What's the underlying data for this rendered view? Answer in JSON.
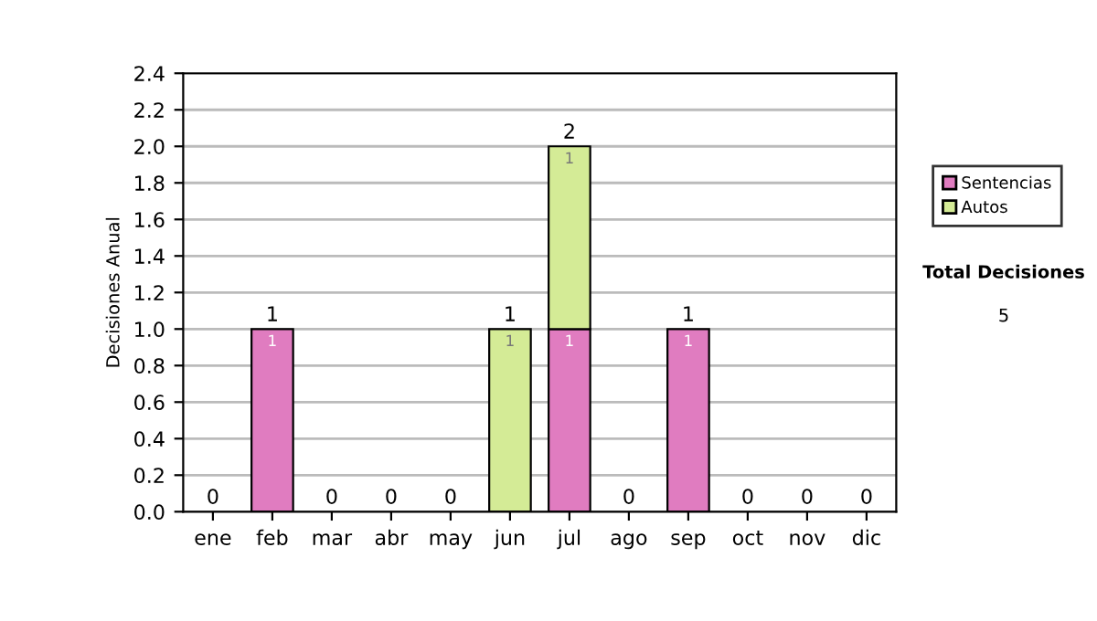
{
  "chart_data": {
    "type": "bar",
    "stacked": true,
    "ylabel": "Decisiones Anual",
    "categories": [
      "ene",
      "feb",
      "mar",
      "abr",
      "may",
      "jun",
      "jul",
      "ago",
      "sep",
      "oct",
      "nov",
      "dic"
    ],
    "series": [
      {
        "name": "Sentencias",
        "color": "#e07cc0",
        "values": [
          0,
          1,
          0,
          0,
          0,
          0,
          1,
          0,
          1,
          0,
          0,
          0
        ],
        "value_labels": [
          null,
          "1",
          null,
          null,
          null,
          null,
          "1",
          null,
          "1",
          null,
          null,
          null
        ]
      },
      {
        "name": "Autos",
        "color": "#d4eb96",
        "values": [
          0,
          0,
          0,
          0,
          0,
          1,
          1,
          0,
          0,
          0,
          0,
          0
        ],
        "value_labels": [
          null,
          null,
          null,
          null,
          null,
          "1",
          "1",
          null,
          null,
          null,
          null,
          null
        ]
      }
    ],
    "totals": [
      "0",
      "1",
      "0",
      "0",
      "0",
      "1",
      "2",
      "0",
      "1",
      "0",
      "0",
      "0"
    ],
    "ylim": [
      0,
      2.4
    ],
    "yticks": [
      {
        "value": 0,
        "label": "0.0"
      },
      {
        "value": 0.2,
        "label": "0.2"
      },
      {
        "value": 0.4,
        "label": "0.4"
      },
      {
        "value": 0.6,
        "label": "0.6"
      },
      {
        "value": 0.8,
        "label": "0.8"
      },
      {
        "value": 1,
        "label": "1.0"
      },
      {
        "value": 1.2,
        "label": "1.2"
      },
      {
        "value": 1.4,
        "label": "1.4"
      },
      {
        "value": 1.6,
        "label": "1.6"
      },
      {
        "value": 1.8,
        "label": "1.8"
      },
      {
        "value": 2,
        "label": "2.0"
      },
      {
        "value": 2.2,
        "label": "2.2"
      },
      {
        "value": 2.4,
        "label": "2.4"
      }
    ],
    "grid": "y",
    "legend": "right",
    "annotations": [
      "Total Decisiones",
      "5"
    ]
  }
}
